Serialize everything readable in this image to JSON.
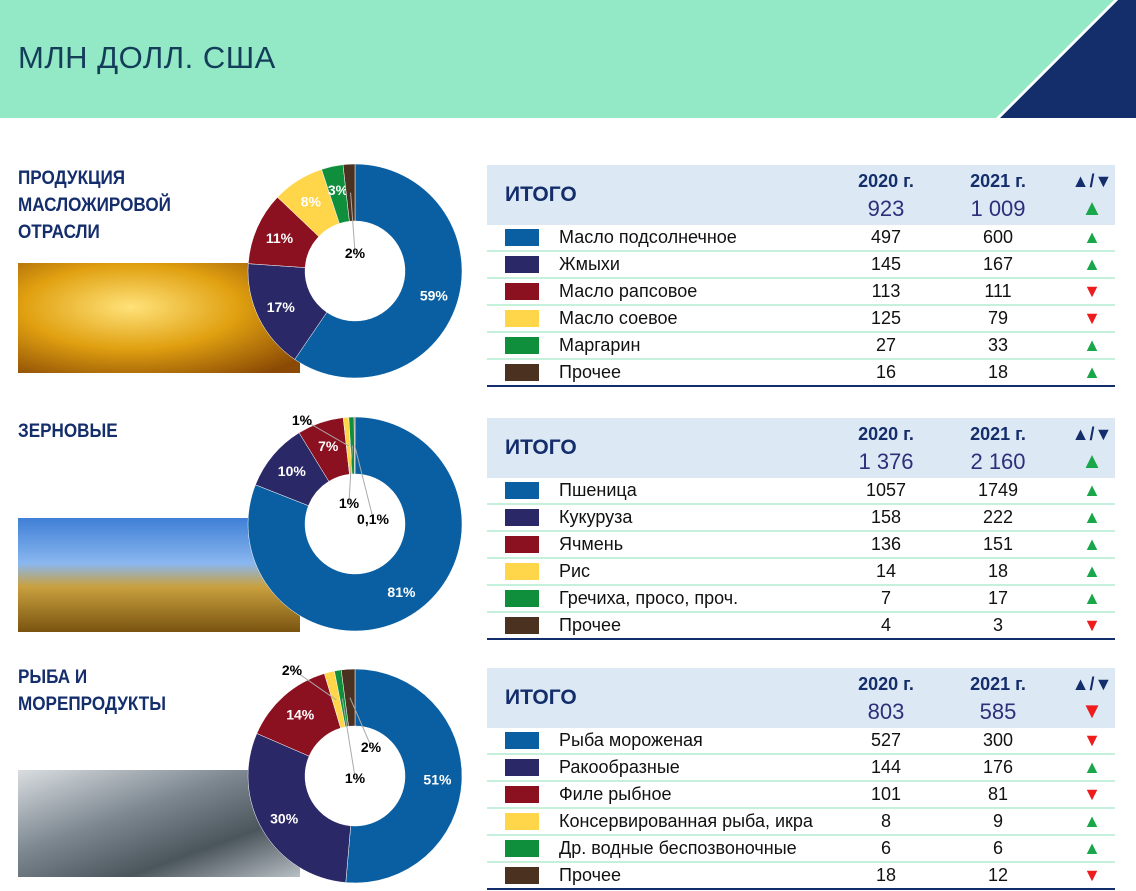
{
  "header": {
    "title": "МЛН ДОЛЛ. США"
  },
  "table_labels": {
    "total": "ИТОГО",
    "year1": "2020 г.",
    "year2": "2021 г.",
    "change": "▲/▼"
  },
  "icons": {
    "up": "▲",
    "down": "▼"
  },
  "colors": {
    "blue": "#0a5fa3",
    "navy": "#2b2867",
    "red": "#8b1020",
    "yellow": "#ffd54a",
    "green": "#0f8e3c",
    "brown": "#4b3220",
    "up": "#1aa64a",
    "down": "#ee1c1c"
  },
  "chart_data": [
    {
      "type": "pie",
      "variant": "donut",
      "title": "ПРОДУКЦИЯ МАСЛОЖИРОВОЙ ОТРАСЛИ",
      "total_2020": "923",
      "total_2021": "1 009",
      "total_trend": "up",
      "categories": [
        "Масло подсолнечное",
        "Жмыхи",
        "Масло рапсовое",
        "Масло соевое",
        "Маргарин",
        "Прочее"
      ],
      "values_2020": [
        497,
        145,
        113,
        125,
        27,
        16
      ],
      "values_2021": [
        600,
        167,
        111,
        79,
        33,
        18
      ],
      "trend": [
        "up",
        "up",
        "down",
        "down",
        "up",
        "up"
      ],
      "slice_labels": [
        "59%",
        "17%",
        "11%",
        "8%",
        "3%",
        "2%"
      ]
    },
    {
      "type": "pie",
      "variant": "donut",
      "title": "ЗЕРНОВЫЕ",
      "total_2020": "1 376",
      "total_2021": "2 160",
      "total_trend": "up",
      "categories": [
        "Пшеница",
        "Кукуруза",
        "Ячмень",
        "Рис",
        "Гречиха, просо, проч.",
        "Прочее"
      ],
      "values_2020": [
        1057,
        158,
        136,
        14,
        7,
        4
      ],
      "values_2021": [
        1749,
        222,
        151,
        18,
        17,
        3
      ],
      "trend": [
        "up",
        "up",
        "up",
        "up",
        "up",
        "down"
      ],
      "slice_labels": [
        "81%",
        "10%",
        "7%",
        "1%",
        "1%",
        "0,1%"
      ]
    },
    {
      "type": "pie",
      "variant": "donut",
      "title": "РЫБА И МОРЕПРОДУКТЫ",
      "total_2020": "803",
      "total_2021": "585",
      "total_trend": "down",
      "categories": [
        "Рыба мороженая",
        "Ракообразные",
        "Филе рыбное",
        "Консервированная рыба, икра",
        "Др. водные беспозвоночные",
        "Прочее"
      ],
      "values_2020": [
        527,
        144,
        101,
        8,
        6,
        18
      ],
      "values_2021": [
        300,
        176,
        81,
        9,
        6,
        12
      ],
      "trend": [
        "down",
        "up",
        "down",
        "up",
        "up",
        "down"
      ],
      "slice_labels": [
        "51%",
        "30%",
        "14%",
        "2%",
        "1%",
        "2%"
      ]
    }
  ]
}
